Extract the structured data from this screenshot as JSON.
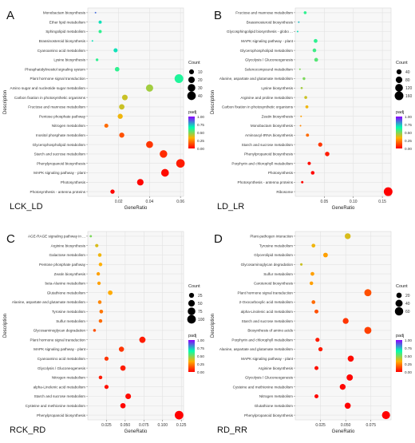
{
  "chart_data": [
    {
      "type": "scatter",
      "panel_letter": "A",
      "corner_label": "LCK_LD",
      "xlabel": "GeneRatio",
      "ylabel": "Description",
      "xlim": [
        0.0,
        0.062
      ],
      "xticks": [
        0.02,
        0.04,
        0.06
      ],
      "xtick_labels": [
        "0.02",
        "0.04",
        "0.06"
      ],
      "size_legend": {
        "title": "Count",
        "values": [
          10,
          20,
          30,
          40
        ],
        "labels": [
          "10",
          "20",
          "30",
          "40"
        ],
        "range": [
          1,
          45
        ]
      },
      "color_legend": {
        "title": "padj",
        "min": 0,
        "max": 1,
        "ticks": [
          0,
          0.25,
          0.5,
          0.75,
          1
        ],
        "tick_labels": [
          "0.00",
          "0.25",
          "0.50",
          "0.75",
          "1.00"
        ]
      },
      "categories": [
        "Monobactam biosynthesis",
        "Ether lipid metabolism",
        "Sphingolipid metabolism",
        "Brassinosteroid biosynthesis",
        "Cyanoamino acid metabolism",
        "Lysine biosynthesis",
        "Phosphatidylinositol signaling system",
        "Plant hormone signal transduction",
        "Amino sugar and nucleotide sugar metabolism",
        "Carbon fixation in photosynthetic organisms",
        "Fructose and mannose metabolism",
        "Pentose phosphate pathway",
        "Nitrogen metabolism",
        "Inositol phosphate metabolism",
        "Glycerophospholipid metabolism",
        "Starch and sucrose metabolism",
        "Phenylpropanoid biosynthesis",
        "MAPK signaling pathway - plant",
        "Photosynthesis",
        "Photosynthesis - antenna proteins"
      ],
      "points": [
        {
          "x": 0.005,
          "count": 1,
          "padj": 0.85
        },
        {
          "x": 0.008,
          "count": 3,
          "padj": 0.7
        },
        {
          "x": 0.008,
          "count": 3,
          "padj": 0.6
        },
        {
          "x": 0.003,
          "count": 1,
          "padj": 0.7
        },
        {
          "x": 0.018,
          "count": 6,
          "padj": 0.7
        },
        {
          "x": 0.006,
          "count": 2,
          "padj": 0.6
        },
        {
          "x": 0.019,
          "count": 8,
          "padj": 0.6
        },
        {
          "x": 0.059,
          "count": 42,
          "padj": 0.62
        },
        {
          "x": 0.04,
          "count": 27,
          "padj": 0.45
        },
        {
          "x": 0.024,
          "count": 14,
          "padj": 0.4
        },
        {
          "x": 0.022,
          "count": 13,
          "padj": 0.4
        },
        {
          "x": 0.021,
          "count": 11,
          "padj": 0.35
        },
        {
          "x": 0.012,
          "count": 6,
          "padj": 0.2
        },
        {
          "x": 0.022,
          "count": 11,
          "padj": 0.15
        },
        {
          "x": 0.04,
          "count": 24,
          "padj": 0.1
        },
        {
          "x": 0.049,
          "count": 30,
          "padj": 0.08
        },
        {
          "x": 0.06,
          "count": 40,
          "padj": 0.05
        },
        {
          "x": 0.05,
          "count": 32,
          "padj": 0.02
        },
        {
          "x": 0.034,
          "count": 21,
          "padj": 0.01
        },
        {
          "x": 0.016,
          "count": 7,
          "padj": 0.01
        }
      ]
    },
    {
      "type": "scatter",
      "panel_letter": "B",
      "corner_label": "LD_LR",
      "xlabel": "GeneRatio",
      "ylabel": "Description",
      "xlim": [
        0.0,
        0.165
      ],
      "xticks": [
        0.05,
        0.1,
        0.15
      ],
      "xtick_labels": [
        "0.05",
        "0.10",
        "0.15"
      ],
      "size_legend": {
        "title": "Count",
        "values": [
          40,
          80,
          120,
          160
        ],
        "labels": [
          "40",
          "80",
          "120",
          "160"
        ],
        "range": [
          5,
          170
        ]
      },
      "color_legend": {
        "title": "padj",
        "min": 0,
        "max": 1,
        "ticks": [
          0,
          0.25,
          0.5,
          0.75,
          1
        ],
        "tick_labels": [
          "0.00",
          "0.25",
          "0.50",
          "0.75",
          "1.00"
        ]
      },
      "categories": [
        "Fructose and mannose metabolism",
        "Brassinosteroid biosynthesis",
        "Glycosphingolipid biosynthesis - globo ...",
        "MAPK signaling pathway - plant",
        "Glycerophospholipid metabolism",
        "Glycolysis / Gluconeogenesis",
        "Selenocompound metabolism",
        "Alanine, aspartate and glutamate metabolism",
        "Lysine biosynthesis",
        "Arginine and proline metabolism",
        "Carbon fixation in photosynthetic organisms",
        "Zeatin biosynthesis",
        "Monobactam biosynthesis",
        "Aminoacyl-tRNA biosynthesis",
        "Starch and sucrose metabolism",
        "Phenylpropanoid biosynthesis",
        "Porphyrin and chlorophyll metabolism",
        "Photosynthesis",
        "Photosynthesis - antenna proteins",
        "Ribosome"
      ],
      "points": [
        {
          "x": 0.017,
          "count": 10,
          "padj": 0.6
        },
        {
          "x": 0.006,
          "count": 3,
          "padj": 0.75
        },
        {
          "x": 0.004,
          "count": 2,
          "padj": 0.7
        },
        {
          "x": 0.035,
          "count": 20,
          "padj": 0.6
        },
        {
          "x": 0.033,
          "count": 18,
          "padj": 0.58
        },
        {
          "x": 0.036,
          "count": 20,
          "padj": 0.55
        },
        {
          "x": 0.008,
          "count": 4,
          "padj": 0.5
        },
        {
          "x": 0.015,
          "count": 9,
          "padj": 0.5
        },
        {
          "x": 0.011,
          "count": 6,
          "padj": 0.45
        },
        {
          "x": 0.018,
          "count": 10,
          "padj": 0.4
        },
        {
          "x": 0.02,
          "count": 11,
          "padj": 0.35
        },
        {
          "x": 0.01,
          "count": 5,
          "padj": 0.3
        },
        {
          "x": 0.009,
          "count": 4,
          "padj": 0.25
        },
        {
          "x": 0.021,
          "count": 12,
          "padj": 0.2
        },
        {
          "x": 0.043,
          "count": 25,
          "padj": 0.1
        },
        {
          "x": 0.055,
          "count": 30,
          "padj": 0.05
        },
        {
          "x": 0.024,
          "count": 14,
          "padj": 0.02
        },
        {
          "x": 0.03,
          "count": 18,
          "padj": 0.01
        },
        {
          "x": 0.012,
          "count": 7,
          "padj": 0.01
        },
        {
          "x": 0.16,
          "count": 160,
          "padj": 0.0
        }
      ]
    },
    {
      "type": "scatter",
      "panel_letter": "C",
      "corner_label": "RCK_RD",
      "xlabel": "GeneRatio",
      "ylabel": "Description",
      "xlim": [
        0.0,
        0.128
      ],
      "xticks": [
        0.025,
        0.05,
        0.075,
        0.1,
        0.125
      ],
      "xtick_labels": [
        "0.025",
        "0.050",
        "0.075",
        "0.100",
        "0.125"
      ],
      "size_legend": {
        "title": "Count",
        "values": [
          25,
          50,
          75,
          100
        ],
        "labels": [
          "25",
          "50",
          "75",
          "100"
        ],
        "range": [
          2,
          110
        ]
      },
      "color_legend": {
        "title": "padj",
        "min": 0,
        "max": 1,
        "ticks": [
          0,
          0.25,
          0.5,
          0.75,
          1
        ],
        "tick_labels": [
          "0.00",
          "0.25",
          "0.50",
          "0.75",
          "1.00"
        ]
      },
      "categories": [
        "AGE-RAGE signaling pathway in ...",
        "Arginine biosynthesis",
        "Galactose metabolism",
        "Pentose phosphate pathway",
        "Zeatin biosynthesis",
        "beta-Alanine metabolism",
        "Glutathione metabolism",
        "Alanine, aspartate and glutamate metabolism",
        "Tyrosine metabolism",
        "Sulfur metabolism",
        "Glycosaminoglycan degradation",
        "Plant hormone signal transduction",
        "MAPK signaling pathway - plant",
        "Cyanoamino acid metabolism",
        "Glycolysis / Gluconeogenesis",
        "Nitrogen metabolism",
        "alpha-Linolenic acid metabolism",
        "Starch and sucrose metabolism",
        "Cysteine and methionine metabolism",
        "Phenylpropanoid biosynthesis"
      ],
      "points": [
        {
          "x": 0.004,
          "count": 3,
          "padj": 0.5
        },
        {
          "x": 0.012,
          "count": 8,
          "padj": 0.38
        },
        {
          "x": 0.016,
          "count": 10,
          "padj": 0.35
        },
        {
          "x": 0.017,
          "count": 10,
          "padj": 0.33
        },
        {
          "x": 0.014,
          "count": 9,
          "padj": 0.3
        },
        {
          "x": 0.015,
          "count": 9,
          "padj": 0.3
        },
        {
          "x": 0.03,
          "count": 20,
          "padj": 0.32
        },
        {
          "x": 0.016,
          "count": 10,
          "padj": 0.25
        },
        {
          "x": 0.018,
          "count": 11,
          "padj": 0.22
        },
        {
          "x": 0.017,
          "count": 10,
          "padj": 0.2
        },
        {
          "x": 0.009,
          "count": 5,
          "padj": 0.15
        },
        {
          "x": 0.073,
          "count": 45,
          "padj": 0.05
        },
        {
          "x": 0.045,
          "count": 28,
          "padj": 0.1
        },
        {
          "x": 0.025,
          "count": 15,
          "padj": 0.1
        },
        {
          "x": 0.047,
          "count": 30,
          "padj": 0.05
        },
        {
          "x": 0.017,
          "count": 10,
          "padj": 0.05
        },
        {
          "x": 0.025,
          "count": 15,
          "padj": 0.03
        },
        {
          "x": 0.054,
          "count": 35,
          "padj": 0.02
        },
        {
          "x": 0.047,
          "count": 30,
          "padj": 0.01
        },
        {
          "x": 0.122,
          "count": 100,
          "padj": 0.0
        }
      ]
    },
    {
      "type": "scatter",
      "panel_letter": "D",
      "corner_label": "RD_RR",
      "xlabel": "GeneRatio",
      "ylabel": "Description",
      "xlim": [
        0.0,
        0.095
      ],
      "xticks": [
        0.025,
        0.05,
        0.075
      ],
      "xtick_labels": [
        "0.025",
        "0.050",
        "0.075"
      ],
      "size_legend": {
        "title": "Count",
        "values": [
          20,
          40,
          60
        ],
        "labels": [
          "20",
          "40",
          "60"
        ],
        "range": [
          2,
          70
        ]
      },
      "color_legend": {
        "title": "padj",
        "min": 0,
        "max": 1,
        "ticks": [
          0,
          0.25,
          0.5,
          0.75,
          1
        ],
        "tick_labels": [
          "0.00",
          "0.25",
          "0.50",
          "0.75",
          "1.00"
        ]
      },
      "categories": [
        "Plant-pathogen interaction",
        "Tyrosine metabolism",
        "Glycerolipid metabolism",
        "Glycosaminoglycan degradation",
        "Sulfur metabolism",
        "Carotenoid biosynthesis",
        "Plant hormone signal transduction",
        "2-Oxocarboxylic acid metabolism",
        "alpha-Linolenic acid metabolism",
        "Starch and sucrose metabolism",
        "Biosynthesis of amino acids",
        "Porphyrin and chlorophyll metabolism",
        "Alanine, aspartate and glutamate metabolism",
        "MAPK signaling pathway - plant",
        "Arginine biosynthesis",
        "Glycolysis / Gluconeogenesis",
        "Cysteine and methionine metabolism",
        "Nitrogen metabolism",
        "Glutathione metabolism",
        "Phenylpropanoid biosynthesis"
      ],
      "points": [
        {
          "x": 0.052,
          "count": 25,
          "padj": 0.38
        },
        {
          "x": 0.018,
          "count": 8,
          "padj": 0.35
        },
        {
          "x": 0.03,
          "count": 14,
          "padj": 0.3
        },
        {
          "x": 0.006,
          "count": 3,
          "padj": 0.4
        },
        {
          "x": 0.017,
          "count": 8,
          "padj": 0.3
        },
        {
          "x": 0.016,
          "count": 7,
          "padj": 0.3
        },
        {
          "x": 0.072,
          "count": 40,
          "padj": 0.15
        },
        {
          "x": 0.018,
          "count": 8,
          "padj": 0.2
        },
        {
          "x": 0.021,
          "count": 9,
          "padj": 0.15
        },
        {
          "x": 0.05,
          "count": 25,
          "padj": 0.1
        },
        {
          "x": 0.072,
          "count": 40,
          "padj": 0.12
        },
        {
          "x": 0.022,
          "count": 10,
          "padj": 0.05
        },
        {
          "x": 0.025,
          "count": 11,
          "padj": 0.05
        },
        {
          "x": 0.055,
          "count": 28,
          "padj": 0.02
        },
        {
          "x": 0.021,
          "count": 9,
          "padj": 0.03
        },
        {
          "x": 0.054,
          "count": 30,
          "padj": 0.01
        },
        {
          "x": 0.047,
          "count": 25,
          "padj": 0.01
        },
        {
          "x": 0.021,
          "count": 9,
          "padj": 0.01
        },
        {
          "x": 0.052,
          "count": 27,
          "padj": 0.0
        },
        {
          "x": 0.09,
          "count": 55,
          "padj": 0.0
        }
      ]
    }
  ]
}
